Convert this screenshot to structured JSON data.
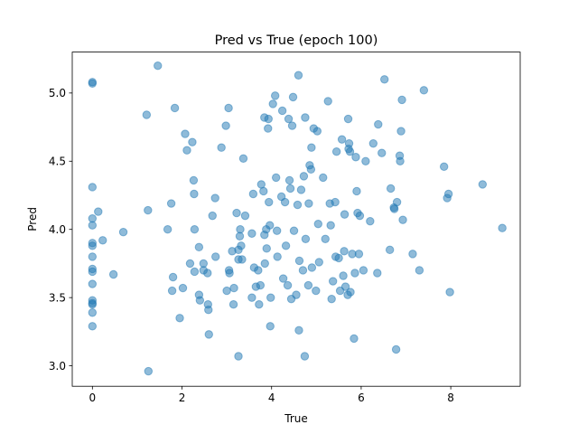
{
  "chart_data": {
    "type": "scatter",
    "title": "Pred vs True (epoch 100)",
    "xlabel": "True",
    "ylabel": "Pred",
    "xlim": [
      -0.45,
      9.55
    ],
    "ylim": [
      2.85,
      5.3
    ],
    "xticks": [
      0,
      2,
      4,
      6,
      8
    ],
    "yticks": [
      3.0,
      3.5,
      4.0,
      4.5,
      5.0
    ],
    "xtick_labels": [
      "0",
      "2",
      "4",
      "6",
      "8"
    ],
    "ytick_labels": [
      "3.0",
      "3.5",
      "4.0",
      "4.5",
      "5.0"
    ],
    "grid": false,
    "marker_color": "#1f77b4",
    "marker_alpha": 0.5,
    "points": [
      [
        0.0,
        5.08
      ],
      [
        0.0,
        5.07
      ],
      [
        0.0,
        4.31
      ],
      [
        0.0,
        4.08
      ],
      [
        0.0,
        4.03
      ],
      [
        0.0,
        3.9
      ],
      [
        0.0,
        3.88
      ],
      [
        0.0,
        3.8
      ],
      [
        0.0,
        3.71
      ],
      [
        0.0,
        3.69
      ],
      [
        0.0,
        3.6
      ],
      [
        0.0,
        3.48
      ],
      [
        0.0,
        3.46
      ],
      [
        0.0,
        3.45
      ],
      [
        0.0,
        3.39
      ],
      [
        0.0,
        3.29
      ],
      [
        0.13,
        4.13
      ],
      [
        0.23,
        3.92
      ],
      [
        0.47,
        3.67
      ],
      [
        0.69,
        3.98
      ],
      [
        1.21,
        4.84
      ],
      [
        1.24,
        4.14
      ],
      [
        1.25,
        2.96
      ],
      [
        1.46,
        5.2
      ],
      [
        1.68,
        4.0
      ],
      [
        1.76,
        4.19
      ],
      [
        1.78,
        3.55
      ],
      [
        1.8,
        3.65
      ],
      [
        1.84,
        4.89
      ],
      [
        1.95,
        3.35
      ],
      [
        2.02,
        3.57
      ],
      [
        2.07,
        4.7
      ],
      [
        2.11,
        4.58
      ],
      [
        2.18,
        3.75
      ],
      [
        2.23,
        4.64
      ],
      [
        2.26,
        4.36
      ],
      [
        2.27,
        4.26
      ],
      [
        2.28,
        4.0
      ],
      [
        2.28,
        3.69
      ],
      [
        2.38,
        3.87
      ],
      [
        2.38,
        3.52
      ],
      [
        2.4,
        3.48
      ],
      [
        2.48,
        3.75
      ],
      [
        2.48,
        3.7
      ],
      [
        2.57,
        3.68
      ],
      [
        2.58,
        3.45
      ],
      [
        2.59,
        3.41
      ],
      [
        2.6,
        3.23
      ],
      [
        2.68,
        4.1
      ],
      [
        2.74,
        4.23
      ],
      [
        2.75,
        3.8
      ],
      [
        2.88,
        4.6
      ],
      [
        2.98,
        4.76
      ],
      [
        3.0,
        3.55
      ],
      [
        3.04,
        4.89
      ],
      [
        3.05,
        3.7
      ],
      [
        3.06,
        3.68
      ],
      [
        3.12,
        3.84
      ],
      [
        3.15,
        3.45
      ],
      [
        3.16,
        3.57
      ],
      [
        3.22,
        4.12
      ],
      [
        3.26,
        3.85
      ],
      [
        3.26,
        3.07
      ],
      [
        3.26,
        3.78
      ],
      [
        3.29,
        3.95
      ],
      [
        3.3,
        4.0
      ],
      [
        3.32,
        3.88
      ],
      [
        3.34,
        3.78
      ],
      [
        3.37,
        4.52
      ],
      [
        3.41,
        4.1
      ],
      [
        3.56,
        3.97
      ],
      [
        3.56,
        3.5
      ],
      [
        3.59,
        4.26
      ],
      [
        3.61,
        3.72
      ],
      [
        3.65,
        3.58
      ],
      [
        3.7,
        3.7
      ],
      [
        3.72,
        3.45
      ],
      [
        3.75,
        3.59
      ],
      [
        3.77,
        4.33
      ],
      [
        3.82,
        4.28
      ],
      [
        3.84,
        4.82
      ],
      [
        3.84,
        3.96
      ],
      [
        3.85,
        3.75
      ],
      [
        3.88,
        4.0
      ],
      [
        3.89,
        3.86
      ],
      [
        3.92,
        4.74
      ],
      [
        3.93,
        4.81
      ],
      [
        3.94,
        4.2
      ],
      [
        3.96,
        4.03
      ],
      [
        3.97,
        3.29
      ],
      [
        3.98,
        3.5
      ],
      [
        4.03,
        4.92
      ],
      [
        4.08,
        4.98
      ],
      [
        4.1,
        4.38
      ],
      [
        4.12,
        3.99
      ],
      [
        4.13,
        3.8
      ],
      [
        4.22,
        4.24
      ],
      [
        4.24,
        4.87
      ],
      [
        4.26,
        3.64
      ],
      [
        4.3,
        4.2
      ],
      [
        4.32,
        3.88
      ],
      [
        4.36,
        3.59
      ],
      [
        4.38,
        4.81
      ],
      [
        4.4,
        4.36
      ],
      [
        4.42,
        4.3
      ],
      [
        4.44,
        3.49
      ],
      [
        4.46,
        4.76
      ],
      [
        4.48,
        4.97
      ],
      [
        4.5,
        3.99
      ],
      [
        4.55,
        3.52
      ],
      [
        4.58,
        4.18
      ],
      [
        4.6,
        5.13
      ],
      [
        4.61,
        3.26
      ],
      [
        4.62,
        3.77
      ],
      [
        4.66,
        4.29
      ],
      [
        4.7,
        3.7
      ],
      [
        4.72,
        4.39
      ],
      [
        4.74,
        3.07
      ],
      [
        4.75,
        4.82
      ],
      [
        4.76,
        3.93
      ],
      [
        4.82,
        3.59
      ],
      [
        4.83,
        4.19
      ],
      [
        4.85,
        4.47
      ],
      [
        4.88,
        4.44
      ],
      [
        4.89,
        4.6
      ],
      [
        4.9,
        3.72
      ],
      [
        4.94,
        4.74
      ],
      [
        4.99,
        3.55
      ],
      [
        5.02,
        4.72
      ],
      [
        5.04,
        4.04
      ],
      [
        5.06,
        3.76
      ],
      [
        5.15,
        4.38
      ],
      [
        5.2,
        3.93
      ],
      [
        5.26,
        4.94
      ],
      [
        5.3,
        4.19
      ],
      [
        5.32,
        4.03
      ],
      [
        5.34,
        3.49
      ],
      [
        5.37,
        3.62
      ],
      [
        5.42,
        4.2
      ],
      [
        5.43,
        3.8
      ],
      [
        5.45,
        4.57
      ],
      [
        5.5,
        3.79
      ],
      [
        5.53,
        3.55
      ],
      [
        5.57,
        4.66
      ],
      [
        5.6,
        3.66
      ],
      [
        5.62,
        3.84
      ],
      [
        5.63,
        4.11
      ],
      [
        5.65,
        3.58
      ],
      [
        5.7,
        3.52
      ],
      [
        5.71,
        4.81
      ],
      [
        5.72,
        4.59
      ],
      [
        5.73,
        4.63
      ],
      [
        5.75,
        4.57
      ],
      [
        5.76,
        3.54
      ],
      [
        5.8,
        3.82
      ],
      [
        5.84,
        3.2
      ],
      [
        5.86,
        3.68
      ],
      [
        5.88,
        4.53
      ],
      [
        5.9,
        4.28
      ],
      [
        5.92,
        4.12
      ],
      [
        5.95,
        3.82
      ],
      [
        5.97,
        4.1
      ],
      [
        6.05,
        3.7
      ],
      [
        6.1,
        4.5
      ],
      [
        6.2,
        4.06
      ],
      [
        6.27,
        4.63
      ],
      [
        6.36,
        3.68
      ],
      [
        6.38,
        4.77
      ],
      [
        6.46,
        4.56
      ],
      [
        6.52,
        5.1
      ],
      [
        6.64,
        3.85
      ],
      [
        6.66,
        4.3
      ],
      [
        6.73,
        4.16
      ],
      [
        6.74,
        4.15
      ],
      [
        6.78,
        3.12
      ],
      [
        6.8,
        4.2
      ],
      [
        6.86,
        4.54
      ],
      [
        6.87,
        4.5
      ],
      [
        6.89,
        4.72
      ],
      [
        6.91,
        4.95
      ],
      [
        6.93,
        4.07
      ],
      [
        7.15,
        3.82
      ],
      [
        7.3,
        3.7
      ],
      [
        7.4,
        5.02
      ],
      [
        7.85,
        4.46
      ],
      [
        7.92,
        4.23
      ],
      [
        7.95,
        4.26
      ],
      [
        7.98,
        3.54
      ],
      [
        8.71,
        4.33
      ],
      [
        9.15,
        4.01
      ]
    ]
  }
}
